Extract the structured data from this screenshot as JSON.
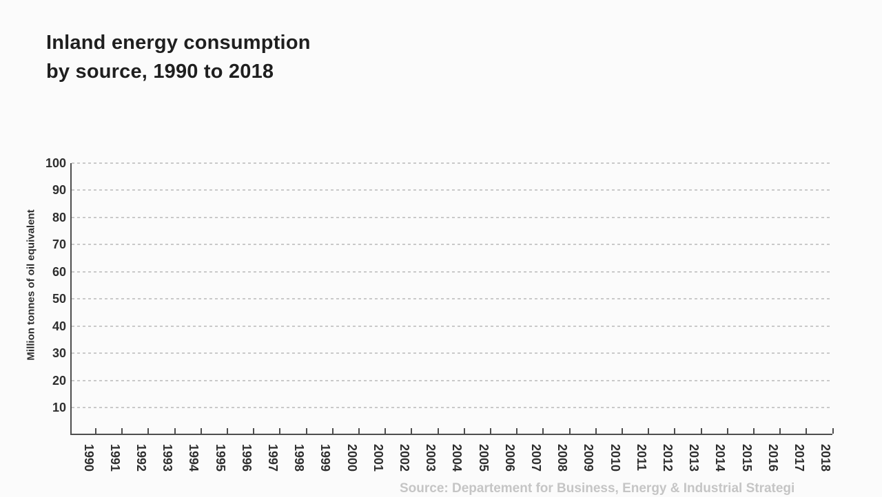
{
  "page": {
    "background": "#fbfbfb"
  },
  "title": {
    "lines": [
      "Inland energy consumption",
      "by source, 1990 to 2018"
    ]
  },
  "source": {
    "text": "Source: Departement for Business, Energy & Industrial Strategi"
  },
  "colors": {
    "title_text": "#1f1f1f",
    "axis": "#4d4d4d",
    "grid": "#c9c9c9",
    "tick_label": "#2e2e2e",
    "source_text": "#c5c5c5"
  },
  "chart_data": {
    "type": "line",
    "title": "Inland energy consumption by source, 1990 to 2018",
    "xlabel": "",
    "ylabel": "Million tonnes of oil equivalent",
    "categories": [
      "1990",
      "1991",
      "1992",
      "1993",
      "1994",
      "1995",
      "1996",
      "1997",
      "1998",
      "1999",
      "2000",
      "2001",
      "2002",
      "2003",
      "2004",
      "2005",
      "2006",
      "2007",
      "2008",
      "2009",
      "2010",
      "2011",
      "2012",
      "2013",
      "2014",
      "2015",
      "2016",
      "2017",
      "2018"
    ],
    "y_ticks": [
      100,
      90,
      80,
      70,
      60,
      50,
      40,
      30,
      20,
      10
    ],
    "ylim": [
      0,
      100
    ],
    "grid": "horizontal-dashed",
    "legend": "none",
    "series": []
  }
}
